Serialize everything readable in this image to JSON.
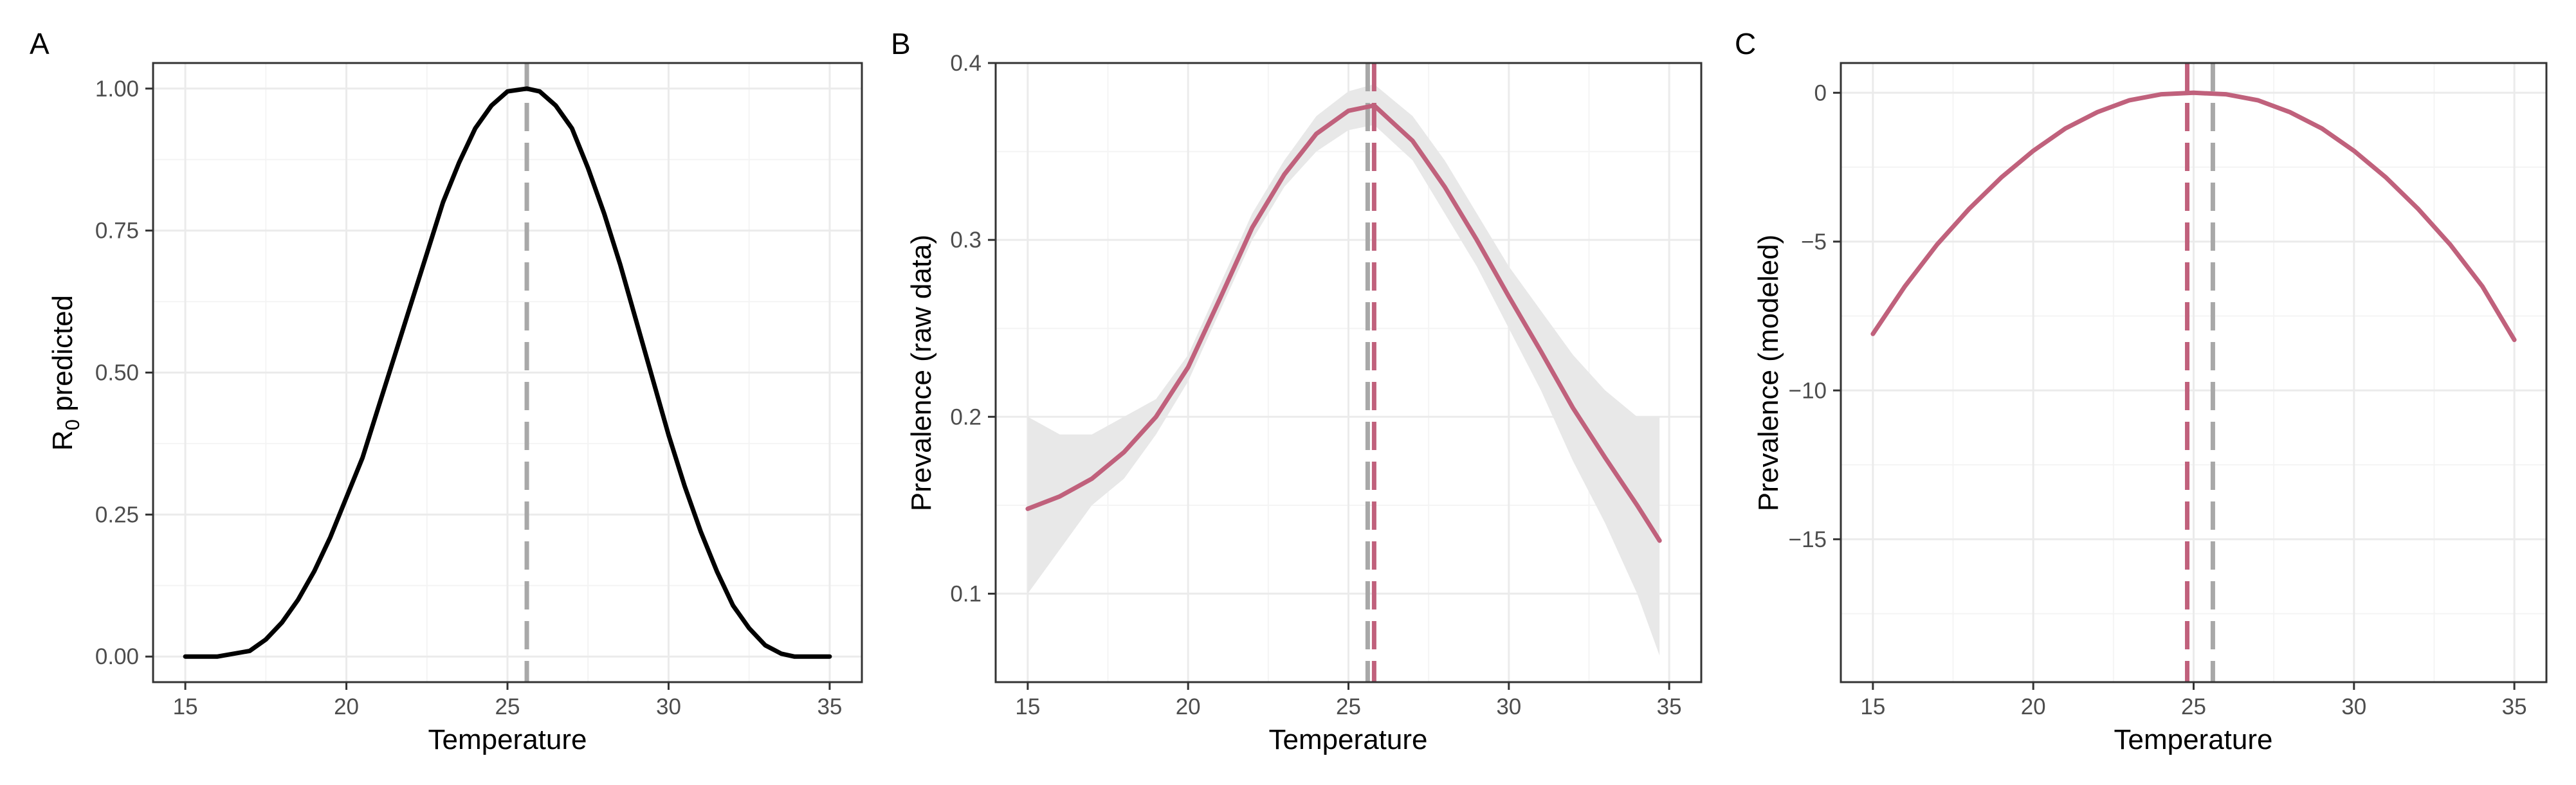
{
  "colors": {
    "curve_a": "#000000",
    "curve_bc": "#c0617c",
    "vline_gray": "#a8a8a8",
    "ribbon": "#e8e8e8",
    "grid_major": "#ebebeb",
    "grid_minor": "#f4f4f4",
    "panel_border": "#333333",
    "text": "#1a1a1a",
    "tick_text": "#4d4d4d"
  },
  "chart_data": [
    {
      "panel": "A",
      "type": "line",
      "xlabel": "Temperature",
      "ylabel": "R0 predicted",
      "ylabel_parts": {
        "base": "R",
        "sub": "0",
        "rest": " predicted"
      },
      "xlim": [
        14,
        36
      ],
      "ylim": [
        -0.045,
        1.045
      ],
      "xticks": [
        15,
        20,
        25,
        30,
        35
      ],
      "yticks": [
        0.0,
        0.25,
        0.5,
        0.75,
        1.0
      ],
      "ytick_labels": [
        "0.00",
        "0.25",
        "0.50",
        "0.75",
        "1.00"
      ],
      "vlines": [
        {
          "x": 25.6,
          "color": "gray",
          "style": "dashed"
        }
      ],
      "series": [
        {
          "color": "black",
          "x": [
            15,
            16,
            17,
            17.5,
            18,
            18.5,
            19,
            19.5,
            20,
            20.5,
            21,
            21.5,
            22,
            22.5,
            23,
            23.5,
            24,
            24.5,
            25,
            25.6,
            26,
            26.5,
            27,
            27.5,
            28,
            28.5,
            29,
            29.5,
            30,
            30.5,
            31,
            31.5,
            32,
            32.5,
            33,
            33.5,
            33.9,
            35
          ],
          "y": [
            0.0,
            0.0,
            0.01,
            0.03,
            0.06,
            0.1,
            0.15,
            0.21,
            0.28,
            0.35,
            0.44,
            0.53,
            0.62,
            0.71,
            0.8,
            0.87,
            0.93,
            0.97,
            0.995,
            1.0,
            0.995,
            0.97,
            0.93,
            0.86,
            0.78,
            0.69,
            0.59,
            0.49,
            0.39,
            0.3,
            0.22,
            0.15,
            0.09,
            0.05,
            0.02,
            0.005,
            0.0,
            0.0
          ]
        }
      ]
    },
    {
      "panel": "B",
      "type": "line",
      "xlabel": "Temperature",
      "ylabel": "Prevalence (raw data)",
      "xlim": [
        14,
        36
      ],
      "ylim": [
        0.05,
        0.4
      ],
      "xticks": [
        15,
        20,
        25,
        30,
        35
      ],
      "yticks": [
        0.1,
        0.2,
        0.3,
        0.4
      ],
      "ytick_labels": [
        "0.1",
        "0.2",
        "0.3",
        "0.4"
      ],
      "vlines": [
        {
          "x": 25.6,
          "color": "gray",
          "style": "dashed"
        },
        {
          "x": 25.8,
          "color": "red",
          "style": "dashed"
        }
      ],
      "ribbon": {
        "x": [
          15,
          16,
          17,
          18,
          19,
          20,
          21,
          22,
          23,
          24,
          25,
          25.8,
          27,
          28,
          29,
          30,
          31,
          32,
          33,
          34,
          34.7
        ],
        "lower": [
          0.1,
          0.125,
          0.15,
          0.165,
          0.19,
          0.22,
          0.26,
          0.3,
          0.33,
          0.35,
          0.362,
          0.365,
          0.345,
          0.315,
          0.285,
          0.25,
          0.215,
          0.175,
          0.14,
          0.1,
          0.065
        ],
        "upper": [
          0.2,
          0.19,
          0.19,
          0.2,
          0.21,
          0.235,
          0.275,
          0.315,
          0.345,
          0.37,
          0.384,
          0.388,
          0.37,
          0.345,
          0.315,
          0.285,
          0.26,
          0.235,
          0.215,
          0.2,
          0.2
        ]
      },
      "series": [
        {
          "color": "red",
          "x": [
            15,
            16,
            17,
            18,
            19,
            20,
            21,
            22,
            23,
            24,
            25,
            25.8,
            27,
            28,
            29,
            30,
            31,
            32,
            33,
            34,
            34.7
          ],
          "y": [
            0.148,
            0.155,
            0.165,
            0.18,
            0.2,
            0.228,
            0.267,
            0.307,
            0.337,
            0.36,
            0.373,
            0.376,
            0.356,
            0.33,
            0.3,
            0.268,
            0.237,
            0.205,
            0.177,
            0.15,
            0.13
          ]
        }
      ]
    },
    {
      "panel": "C",
      "type": "line",
      "xlabel": "Temperature",
      "ylabel": "Prevalence (modeled)",
      "xlim": [
        14,
        36
      ],
      "ylim": [
        -19.8,
        1.0
      ],
      "xticks": [
        15,
        20,
        25,
        30,
        35
      ],
      "yticks": [
        -15,
        -10,
        -5,
        0
      ],
      "ytick_labels": [
        "−15",
        "−10",
        "−5",
        "0"
      ],
      "vlines": [
        {
          "x": 24.8,
          "color": "red",
          "style": "dashed"
        },
        {
          "x": 25.6,
          "color": "gray",
          "style": "dashed"
        }
      ],
      "series": [
        {
          "color": "red",
          "x": [
            15,
            16,
            17,
            18,
            19,
            20,
            21,
            22,
            23,
            24,
            25,
            26,
            27,
            28,
            29,
            30,
            31,
            32,
            33,
            34,
            35
          ],
          "y": [
            -8.1,
            -6.5,
            -5.1,
            -3.9,
            -2.85,
            -1.95,
            -1.2,
            -0.65,
            -0.25,
            -0.05,
            0.0,
            -0.05,
            -0.25,
            -0.65,
            -1.2,
            -1.95,
            -2.85,
            -3.9,
            -5.1,
            -6.5,
            -8.3
          ]
        }
      ]
    }
  ]
}
